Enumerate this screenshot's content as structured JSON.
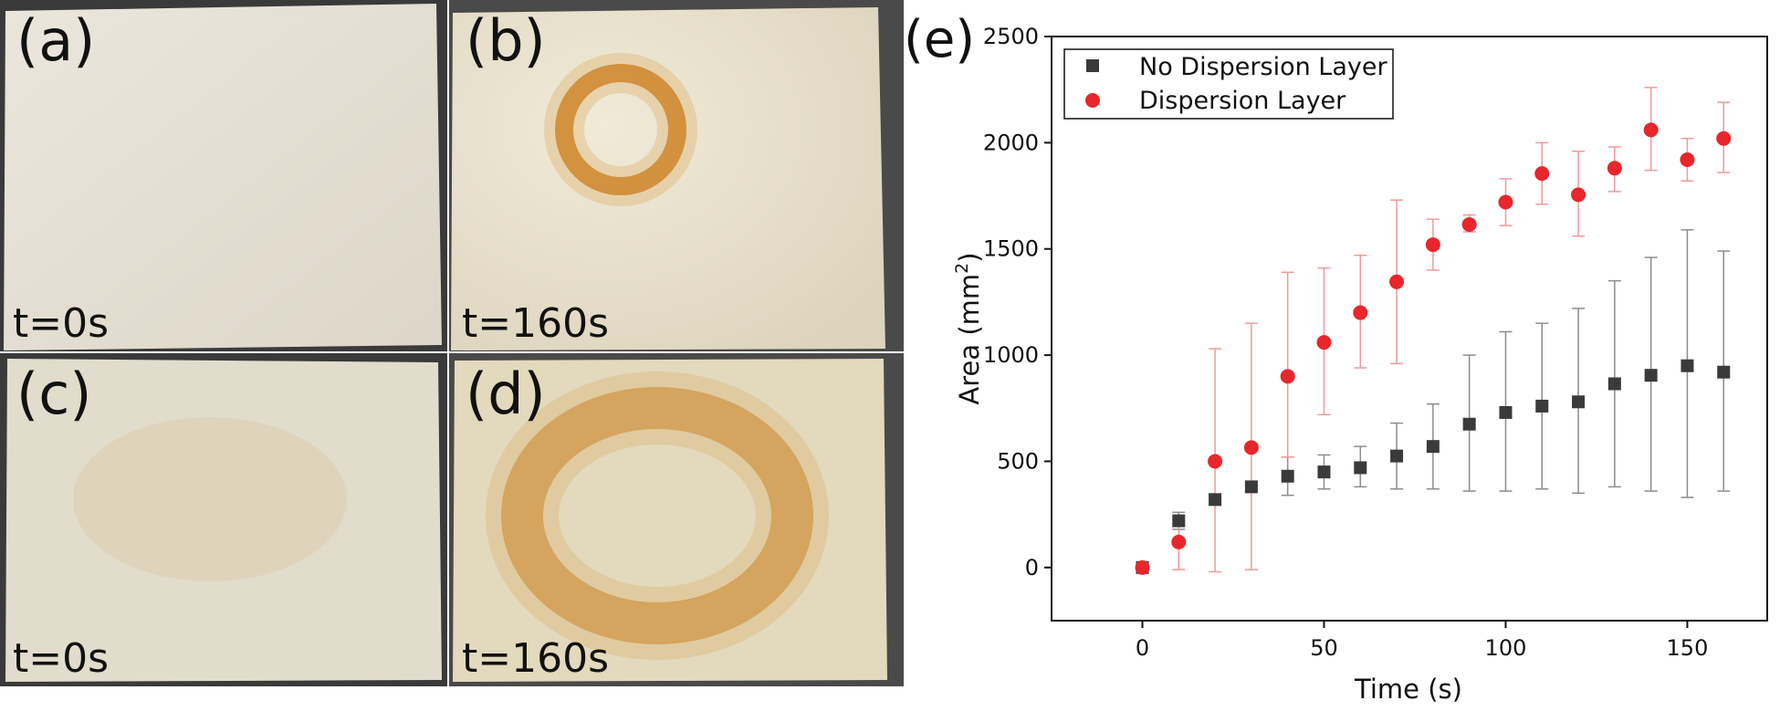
{
  "panels": [
    {
      "id": "a",
      "label": "(a)",
      "time_label": "t=0s"
    },
    {
      "id": "b",
      "label": "(b)",
      "time_label": "t=160s"
    },
    {
      "id": "c",
      "label": "(c)",
      "time_label": "t=0s"
    },
    {
      "id": "d",
      "label": "(d)",
      "time_label": "t=160s"
    }
  ],
  "panel_e_label": "(e)",
  "colors": {
    "no_dispersion": "#3a3a3a",
    "dispersion": "#e8262c",
    "stain": "#c97a1e",
    "fabric": "#e7e1d3"
  },
  "chart_data": {
    "type": "scatter",
    "xlabel": "Time (s)",
    "ylabel_main": "Area (mm",
    "ylabel_sup": "2",
    "ylabel_end": ")",
    "xlim": [
      -25,
      172
    ],
    "ylim": [
      -250,
      2500
    ],
    "xticks": [
      0,
      50,
      100,
      150
    ],
    "yticks": [
      0,
      500,
      1000,
      1500,
      2000,
      2500
    ],
    "legend_position": "top-left",
    "series": [
      {
        "name": "No Dispersion Layer",
        "marker": "square",
        "x": [
          0,
          10,
          20,
          30,
          40,
          50,
          60,
          70,
          80,
          90,
          100,
          110,
          120,
          130,
          140,
          150,
          160
        ],
        "y": [
          0,
          220,
          320,
          380,
          430,
          450,
          470,
          525,
          570,
          675,
          730,
          760,
          780,
          865,
          905,
          950,
          920
        ],
        "err_low": [
          0,
          180,
          300,
          360,
          340,
          370,
          380,
          370,
          370,
          360,
          360,
          370,
          350,
          380,
          360,
          330,
          360
        ],
        "err_high": [
          0,
          260,
          340,
          400,
          520,
          530,
          570,
          680,
          770,
          1000,
          1110,
          1150,
          1220,
          1350,
          1460,
          1590,
          1490
        ]
      },
      {
        "name": "Dispersion Layer",
        "marker": "circle",
        "x": [
          0,
          10,
          20,
          30,
          40,
          50,
          60,
          70,
          80,
          90,
          100,
          110,
          120,
          130,
          140,
          150,
          160
        ],
        "y": [
          0,
          120,
          500,
          565,
          900,
          1060,
          1200,
          1345,
          1520,
          1615,
          1720,
          1855,
          1755,
          1880,
          2060,
          1920,
          2020
        ],
        "err_low": [
          0,
          -10,
          -20,
          -10,
          520,
          720,
          940,
          960,
          1400,
          1580,
          1610,
          1710,
          1560,
          1770,
          1870,
          1820,
          1860
        ],
        "err_high": [
          0,
          240,
          1030,
          1150,
          1390,
          1410,
          1470,
          1730,
          1640,
          1660,
          1830,
          2000,
          1960,
          1980,
          2260,
          2020,
          2190
        ]
      }
    ]
  }
}
